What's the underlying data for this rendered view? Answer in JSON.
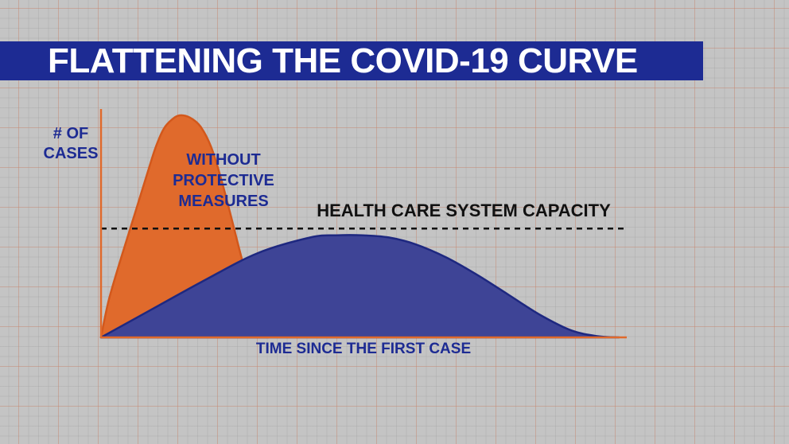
{
  "header": {
    "title": "FLATTENING THE COVID-19 CURVE"
  },
  "chart_data": {
    "type": "area",
    "title": "FLATTENING THE COVID-19 CURVE",
    "ylabel_lines": [
      "# OF",
      "CASES"
    ],
    "xlabel": "TIME SINCE THE FIRST CASE",
    "xlim": [
      0,
      100
    ],
    "ylim": [
      0,
      100
    ],
    "grid": true,
    "capacity_line": {
      "label": "HEALTH CARE SYSTEM CAPACITY",
      "value": 49,
      "style": "dashed",
      "color": "#111111"
    },
    "series": [
      {
        "label_lines": [
          "WITHOUT",
          "PROTECTIVE",
          "MEASURES"
        ],
        "color": "#e06a2c",
        "stroke": "#d2581c",
        "x": [
          0,
          1.5,
          4,
          6.5,
          9,
          10.5,
          12,
          13.5,
          15,
          17,
          19,
          21,
          23,
          25,
          26.5,
          28,
          30,
          32
        ],
        "values": [
          0,
          17,
          37,
          56,
          75,
          86,
          94,
          98,
          100,
          99,
          95,
          86,
          71,
          53,
          39,
          26,
          12,
          0
        ]
      },
      {
        "color": "#3e4496",
        "stroke": "#1e2880",
        "x": [
          0,
          10,
          20,
          30,
          40,
          45,
          50,
          55,
          60,
          66,
          72,
          78,
          84,
          90,
          95,
          99
        ],
        "values": [
          0,
          13,
          26,
          38,
          45,
          46,
          46,
          45,
          42,
          36,
          28,
          19,
          10,
          3,
          0.5,
          0
        ]
      }
    ],
    "colors": {
      "axis": "#e06a2c",
      "label_dark": "#1d2b93",
      "label_light": "#1d2b93",
      "capacity_text": "#111111"
    }
  }
}
